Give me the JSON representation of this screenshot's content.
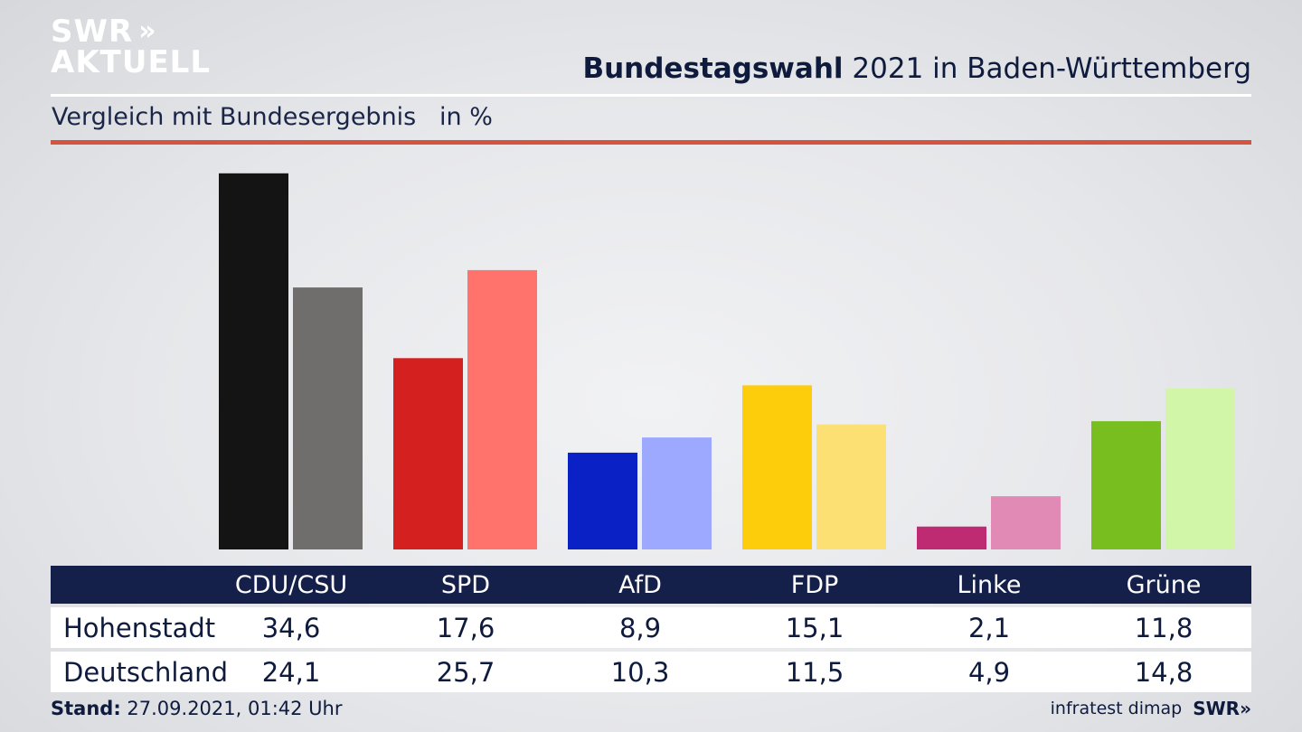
{
  "logo": {
    "line1": "SWR",
    "line2": "AKTUELL",
    "chevrons": "»"
  },
  "header": {
    "title_bold": "Bundestagswahl",
    "title_rest": " 2021 in Baden-Württemberg",
    "subtitle": "Vergleich mit Bundesergebnis   in %"
  },
  "chart_data": {
    "type": "bar",
    "categories": [
      "CDU/CSU",
      "SPD",
      "AfD",
      "FDP",
      "Linke",
      "Grüne"
    ],
    "series": [
      {
        "name": "Hohenstadt",
        "values": [
          34.6,
          17.6,
          8.9,
          15.1,
          2.1,
          11.8
        ]
      },
      {
        "name": "Deutschland",
        "values": [
          24.1,
          25.7,
          10.3,
          11.5,
          4.9,
          14.8
        ]
      }
    ],
    "colors_primary": [
      "#141414",
      "#d4201f",
      "#0a21c6",
      "#fdcc0a",
      "#bf2b72",
      "#78be1f"
    ],
    "colors_secondary": [
      "#6f6e6c",
      "#ff736c",
      "#9ca9ff",
      "#fde073",
      "#e18ab5",
      "#d2f6a7"
    ],
    "ylim": [
      0,
      35
    ],
    "grid": false
  },
  "table": {
    "headers": [
      "CDU/CSU",
      "SPD",
      "AfD",
      "FDP",
      "Linke",
      "Grüne"
    ],
    "rows": [
      {
        "label": "Hohenstadt",
        "values": [
          "34,6",
          "17,6",
          "8,9",
          "15,1",
          "2,1",
          "11,8"
        ]
      },
      {
        "label": "Deutschland",
        "values": [
          "24,1",
          "25,7",
          "10,3",
          "11,5",
          "4,9",
          "14,8"
        ]
      }
    ]
  },
  "footer": {
    "stand_label": "Stand:",
    "stand_value": " 27.09.2021, 01:42 Uhr",
    "source": "infratest dimap",
    "brand": "SWR",
    "brand_chevrons": "»"
  }
}
